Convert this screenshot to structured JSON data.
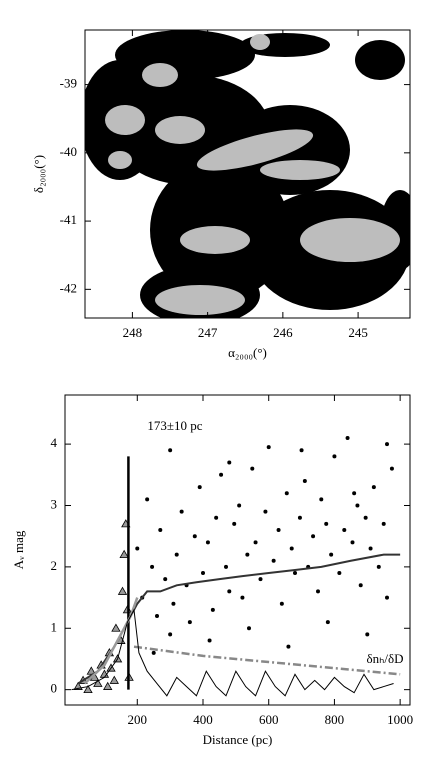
{
  "chart_data": [
    {
      "type": "map",
      "xlabel": "α₂₀₀₀(°)",
      "ylabel": "δ₂₀₀₀(°)",
      "xlim": [
        248.63,
        244.31
      ],
      "ylim": [
        -42.42,
        -38.2
      ],
      "xticks": [
        248,
        247,
        246,
        245
      ],
      "yticks": [
        -39,
        -40,
        -41,
        -42
      ]
    },
    {
      "type": "scatter",
      "xlabel": "Distance (pc)",
      "ylabel": "Aᵥ mag",
      "annotations": [
        "173±10 pc",
        "δnₕ/δD"
      ],
      "xlim": [
        -20,
        1030
      ],
      "ylim": [
        -0.25,
        4.8
      ],
      "xticks": [
        200,
        400,
        600,
        800,
        1000
      ],
      "yticks": [
        0,
        1,
        2,
        3,
        4
      ],
      "series": [
        {
          "marker": "circle",
          "color": "#000000",
          "x": [
            200,
            215,
            230,
            245,
            260,
            270,
            285,
            300,
            310,
            320,
            335,
            350,
            360,
            375,
            390,
            400,
            415,
            430,
            440,
            455,
            470,
            480,
            495,
            510,
            520,
            535,
            550,
            560,
            575,
            590,
            600,
            615,
            630,
            640,
            655,
            670,
            680,
            695,
            710,
            720,
            735,
            750,
            760,
            775,
            790,
            800,
            815,
            830,
            840,
            855,
            870,
            880,
            895,
            910,
            920,
            935,
            950,
            960,
            975,
            300,
            420,
            540,
            660,
            780,
            900,
            250,
            480,
            700,
            860,
            960
          ],
          "y": [
            2.3,
            1.5,
            3.1,
            2.0,
            1.2,
            2.6,
            1.8,
            3.9,
            1.4,
            2.2,
            2.9,
            1.7,
            1.1,
            2.5,
            3.3,
            1.9,
            2.4,
            1.3,
            2.8,
            3.5,
            2.0,
            1.6,
            2.7,
            3.0,
            1.5,
            2.2,
            3.6,
            2.4,
            1.8,
            2.9,
            3.95,
            2.1,
            2.6,
            1.4,
            3.2,
            2.3,
            1.9,
            2.8,
            3.4,
            2.0,
            2.5,
            1.6,
            3.1,
            2.7,
            2.2,
            3.8,
            1.9,
            2.6,
            4.1,
            2.4,
            3.0,
            1.7,
            2.8,
            2.3,
            3.3,
            2.0,
            2.7,
            1.5,
            3.6,
            0.9,
            0.8,
            1.0,
            0.7,
            1.1,
            0.9,
            0.6,
            3.7,
            3.9,
            3.2,
            4.0
          ]
        },
        {
          "marker": "triangle",
          "color": "#999999",
          "x": [
            20,
            35,
            50,
            60,
            70,
            80,
            90,
            100,
            110,
            115,
            120,
            130,
            135,
            140,
            150,
            155,
            160,
            165,
            170,
            175
          ],
          "y": [
            0.05,
            0.15,
            0.0,
            0.3,
            0.2,
            0.1,
            0.4,
            0.25,
            0.05,
            0.6,
            0.35,
            0.15,
            1.0,
            0.5,
            0.8,
            1.6,
            2.2,
            2.7,
            1.3,
            0.2
          ]
        },
        {
          "line": "solid",
          "color": "#000000",
          "width": 2.5,
          "x": [
            173,
            173
          ],
          "y": [
            0,
            3.8
          ]
        },
        {
          "line": "solid",
          "color": "#333333",
          "width": 2,
          "x": [
            20,
            80,
            130,
            170,
            200,
            230,
            270,
            320,
            380,
            450,
            520,
            600,
            680,
            760,
            850,
            950,
            1000
          ],
          "y": [
            0.1,
            0.3,
            0.7,
            1.1,
            1.4,
            1.6,
            1.6,
            1.7,
            1.75,
            1.8,
            1.85,
            1.9,
            1.95,
            2.0,
            2.1,
            2.2,
            2.2
          ]
        },
        {
          "line": "solid",
          "color": "#999999",
          "width": 2.5,
          "x": [
            40,
            100,
            150,
            180,
            200
          ],
          "y": [
            0.1,
            0.4,
            0.9,
            1.2,
            1.5
          ]
        },
        {
          "line": "dashdot",
          "color": "#888888",
          "width": 2.5,
          "x": [
            190,
            400,
            600,
            800,
            1000
          ],
          "y": [
            0.7,
            0.55,
            0.45,
            0.35,
            0.25
          ]
        },
        {
          "line": "solid",
          "color": "#000000",
          "width": 1,
          "x": [
            0,
            50,
            100,
            140,
            170,
            190,
            205,
            230,
            260,
            290,
            320,
            350,
            380,
            410,
            440,
            470,
            500,
            530,
            560,
            590,
            620,
            650,
            680,
            710,
            740,
            770,
            800,
            830,
            860,
            890,
            920,
            950,
            980
          ],
          "y": [
            0,
            0.05,
            0.2,
            0.5,
            1.1,
            1.3,
            0.6,
            0.3,
            0.1,
            -0.1,
            0.2,
            0.05,
            -0.1,
            0.3,
            0.05,
            -0.1,
            0.3,
            0.05,
            -0.1,
            0.3,
            0.05,
            -0.1,
            0.25,
            0.0,
            0.15,
            0.0,
            0.2,
            0.05,
            -0.05,
            0.25,
            0.0,
            0.05,
            0.1
          ]
        }
      ]
    }
  ]
}
